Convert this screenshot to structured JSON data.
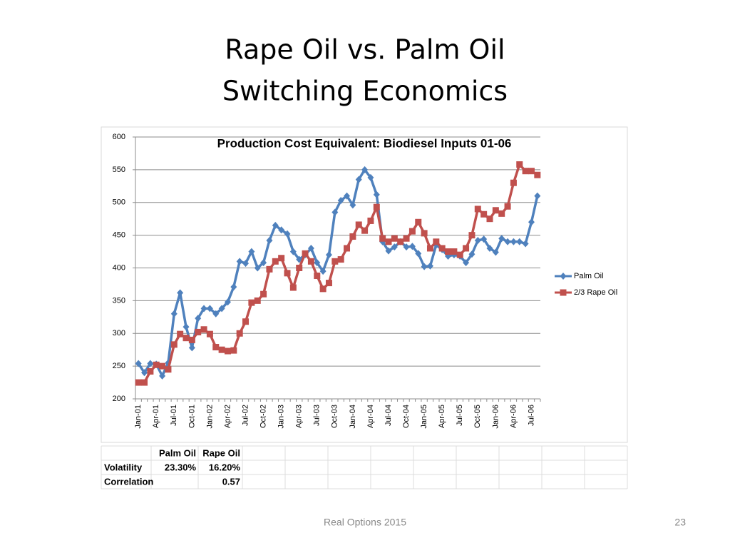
{
  "slide": {
    "title_lines": [
      "Rape Oil vs. Palm Oil",
      "Switching Economics"
    ]
  },
  "chart_data": {
    "type": "line",
    "title": "Production Cost Equivalent: Biodiesel Inputs 01-06",
    "categories": [
      "Jan-01",
      null,
      null,
      "Apr-01",
      null,
      null,
      "Jul-01",
      null,
      null,
      "Oct-01",
      null,
      null,
      "Jan-02",
      null,
      null,
      "Apr-02",
      null,
      null,
      "Jul-02",
      null,
      null,
      "Oct-02",
      null,
      null,
      "Jan-03",
      null,
      null,
      "Apr-03",
      null,
      null,
      "Jul-03",
      null,
      null,
      "Oct-03",
      null,
      null,
      "Jan-04",
      null,
      null,
      "Apr-04",
      null,
      null,
      "Jul-04",
      null,
      null,
      "Oct-04",
      null,
      null,
      "Jan-05",
      null,
      null,
      "Apr-05",
      null,
      null,
      "Jul-05",
      null,
      null,
      "Oct-05",
      null,
      null,
      "Jan-06",
      null,
      null,
      "Apr-06",
      null,
      null,
      "Jul-06",
      null
    ],
    "series": [
      {
        "name": "Palm Oil",
        "color": "#4f81bd",
        "marker": "diamond",
        "values": [
          254,
          240,
          254,
          253,
          235,
          255,
          330,
          362,
          310,
          278,
          323,
          338,
          338,
          330,
          338,
          348,
          371,
          410,
          407,
          425,
          400,
          408,
          442,
          465,
          458,
          452,
          425,
          413,
          420,
          430,
          408,
          395,
          420,
          485,
          503,
          510,
          496,
          535,
          550,
          538,
          512,
          440,
          426,
          432,
          440,
          432,
          433,
          422,
          402,
          403,
          435,
          428,
          418,
          420,
          418,
          408,
          421,
          442,
          444,
          430,
          424,
          445,
          440,
          440,
          440,
          437,
          470,
          510
        ]
      },
      {
        "name": "2/3 Rape Oil",
        "color": "#c0504d",
        "marker": "square",
        "values": [
          225,
          225,
          242,
          252,
          250,
          245,
          283,
          299,
          293,
          290,
          302,
          306,
          299,
          279,
          275,
          273,
          274,
          300,
          318,
          347,
          350,
          360,
          398,
          410,
          415,
          392,
          370,
          400,
          422,
          410,
          388,
          368,
          377,
          410,
          413,
          430,
          448,
          466,
          457,
          472,
          493,
          445,
          440,
          445,
          440,
          445,
          456,
          470,
          453,
          430,
          440,
          430,
          425,
          425,
          420,
          430,
          450,
          490,
          482,
          475,
          488,
          483,
          494,
          530,
          558,
          548,
          548,
          542
        ]
      }
    ],
    "ylim": [
      200,
      600
    ],
    "yticks": [
      200,
      250,
      300,
      350,
      400,
      450,
      500,
      550,
      600
    ],
    "grid": true,
    "legend": "right"
  },
  "table": {
    "columns": [
      "Palm Oil",
      "Rape Oil"
    ],
    "rows": [
      {
        "label": "Volatility",
        "cells": [
          "23.30%",
          "16.20%"
        ]
      },
      {
        "label": "Correlation",
        "cells": [
          null,
          "0.57"
        ]
      }
    ]
  },
  "footer": {
    "text": "Real Options 2015",
    "page": "23"
  }
}
